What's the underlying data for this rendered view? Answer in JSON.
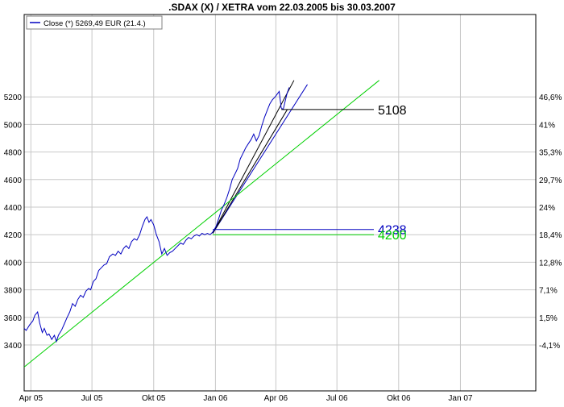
{
  "chart_data": {
    "type": "line",
    "title": ".SDAX (X) / XETRA vom 22.03.2005 bis 30.03.2007",
    "legend": {
      "text": "Close (*) 5269,49 EUR (21.4.)",
      "placement": "top-left"
    },
    "x_ticks": [
      "Apr 05",
      "Jul 05",
      "Okt 05",
      "Jan 06",
      "Apr 06",
      "Jul 06",
      "Okt 06",
      "Jan 07"
    ],
    "y_left_ticks": [
      "3400",
      "3600",
      "3800",
      "4000",
      "4200",
      "4400",
      "4600",
      "4800",
      "5000",
      "5200"
    ],
    "y_right_ticks": [
      "-4,1%",
      "1,5%",
      "7,1%",
      "12,8%",
      "18,4%",
      "24%",
      "29,7%",
      "35,3%",
      "41%",
      "46,6%"
    ],
    "ylim": [
      3240,
      5320
    ],
    "grid": true,
    "series": [
      {
        "name": "Close (*) 5269,49 EUR (21.4.)",
        "color": "#0000c0",
        "points": [
          [
            "2005-03-22",
            3520
          ],
          [
            "2005-03-25",
            3505
          ],
          [
            "2005-03-30",
            3545
          ],
          [
            "2005-04-04",
            3575
          ],
          [
            "2005-04-07",
            3615
          ],
          [
            "2005-04-11",
            3640
          ],
          [
            "2005-04-14",
            3560
          ],
          [
            "2005-04-18",
            3490
          ],
          [
            "2005-04-21",
            3520
          ],
          [
            "2005-04-25",
            3470
          ],
          [
            "2005-04-28",
            3480
          ],
          [
            "2005-05-02",
            3440
          ],
          [
            "2005-05-06",
            3470
          ],
          [
            "2005-05-09",
            3425
          ],
          [
            "2005-05-12",
            3470
          ],
          [
            "2005-05-17",
            3510
          ],
          [
            "2005-05-21",
            3555
          ],
          [
            "2005-05-25",
            3600
          ],
          [
            "2005-05-29",
            3640
          ],
          [
            "2005-06-02",
            3700
          ],
          [
            "2005-06-06",
            3680
          ],
          [
            "2005-06-10",
            3730
          ],
          [
            "2005-06-14",
            3760
          ],
          [
            "2005-06-18",
            3745
          ],
          [
            "2005-06-22",
            3790
          ],
          [
            "2005-06-26",
            3810
          ],
          [
            "2005-06-29",
            3800
          ],
          [
            "2005-07-03",
            3860
          ],
          [
            "2005-07-07",
            3880
          ],
          [
            "2005-07-11",
            3940
          ],
          [
            "2005-07-15",
            3960
          ],
          [
            "2005-07-19",
            3980
          ],
          [
            "2005-07-23",
            3990
          ],
          [
            "2005-07-27",
            4040
          ],
          [
            "2005-08-01",
            4060
          ],
          [
            "2005-08-05",
            4050
          ],
          [
            "2005-08-09",
            4080
          ],
          [
            "2005-08-13",
            4060
          ],
          [
            "2005-08-17",
            4100
          ],
          [
            "2005-08-21",
            4120
          ],
          [
            "2005-08-25",
            4100
          ],
          [
            "2005-08-29",
            4150
          ],
          [
            "2005-09-02",
            4170
          ],
          [
            "2005-09-06",
            4160
          ],
          [
            "2005-09-10",
            4200
          ],
          [
            "2005-09-14",
            4260
          ],
          [
            "2005-09-18",
            4310
          ],
          [
            "2005-09-21",
            4330
          ],
          [
            "2005-09-24",
            4290
          ],
          [
            "2005-09-27",
            4310
          ],
          [
            "2005-10-01",
            4270
          ],
          [
            "2005-10-05",
            4200
          ],
          [
            "2005-10-09",
            4150
          ],
          [
            "2005-10-13",
            4060
          ],
          [
            "2005-10-17",
            4100
          ],
          [
            "2005-10-21",
            4050
          ],
          [
            "2005-10-25",
            4070
          ],
          [
            "2005-10-29",
            4080
          ],
          [
            "2005-11-02",
            4100
          ],
          [
            "2005-11-06",
            4120
          ],
          [
            "2005-11-10",
            4140
          ],
          [
            "2005-11-14",
            4130
          ],
          [
            "2005-11-18",
            4160
          ],
          [
            "2005-11-22",
            4180
          ],
          [
            "2005-11-26",
            4170
          ],
          [
            "2005-11-30",
            4190
          ],
          [
            "2005-12-04",
            4200
          ],
          [
            "2005-12-08",
            4190
          ],
          [
            "2005-12-12",
            4210
          ],
          [
            "2005-12-16",
            4200
          ],
          [
            "2005-12-20",
            4210
          ],
          [
            "2005-12-24",
            4200
          ],
          [
            "2005-12-28",
            4220
          ],
          [
            "2006-01-02",
            4260
          ],
          [
            "2006-01-06",
            4320
          ],
          [
            "2006-01-10",
            4380
          ],
          [
            "2006-01-14",
            4420
          ],
          [
            "2006-01-18",
            4470
          ],
          [
            "2006-01-22",
            4530
          ],
          [
            "2006-01-26",
            4600
          ],
          [
            "2006-01-30",
            4640
          ],
          [
            "2006-02-03",
            4680
          ],
          [
            "2006-02-07",
            4750
          ],
          [
            "2006-02-11",
            4790
          ],
          [
            "2006-02-15",
            4830
          ],
          [
            "2006-02-19",
            4860
          ],
          [
            "2006-02-23",
            4890
          ],
          [
            "2006-02-27",
            4930
          ],
          [
            "2006-03-03",
            4880
          ],
          [
            "2006-03-07",
            4920
          ],
          [
            "2006-03-11",
            4990
          ],
          [
            "2006-03-15",
            5050
          ],
          [
            "2006-03-19",
            5100
          ],
          [
            "2006-03-23",
            5150
          ],
          [
            "2006-03-27",
            5180
          ],
          [
            "2006-03-31",
            5200
          ],
          [
            "2006-04-03",
            5220
          ],
          [
            "2006-04-06",
            5240
          ],
          [
            "2006-04-09",
            5120
          ],
          [
            "2006-04-12",
            5108
          ],
          [
            "2006-04-15",
            5170
          ],
          [
            "2006-04-18",
            5230
          ],
          [
            "2006-04-21",
            5269
          ]
        ]
      }
    ],
    "trendlines": [
      {
        "label": "",
        "color": "#000000",
        "from": [
          "2005-12-28",
          4210
        ],
        "to": [
          "2006-04-28",
          5320
        ]
      },
      {
        "label": "",
        "color": "#0000c0",
        "from": [
          "2005-12-28",
          4210
        ],
        "to": [
          "2006-05-18",
          5290
        ]
      },
      {
        "label": "",
        "color": "#000000",
        "from": [
          "2005-12-28",
          4210
        ],
        "to": [
          "2006-04-18",
          5108
        ]
      },
      {
        "label": "",
        "color": "#00d000",
        "from": [
          "2005-03-22",
          3240
        ],
        "to": [
          "2006-09-02",
          5320
        ]
      }
    ],
    "horizontal_levels": [
      {
        "label": "5108",
        "value": 5108,
        "color": "#000000",
        "from": "2006-04-09",
        "to": "2006-08-25"
      },
      {
        "label": "4238",
        "value": 4238,
        "color": "#0000c0",
        "from": "2005-12-28",
        "to": "2006-08-25"
      },
      {
        "label": "4200",
        "value": 4200,
        "color": "#00d000",
        "from": "2005-12-28",
        "to": "2006-08-25"
      }
    ]
  }
}
